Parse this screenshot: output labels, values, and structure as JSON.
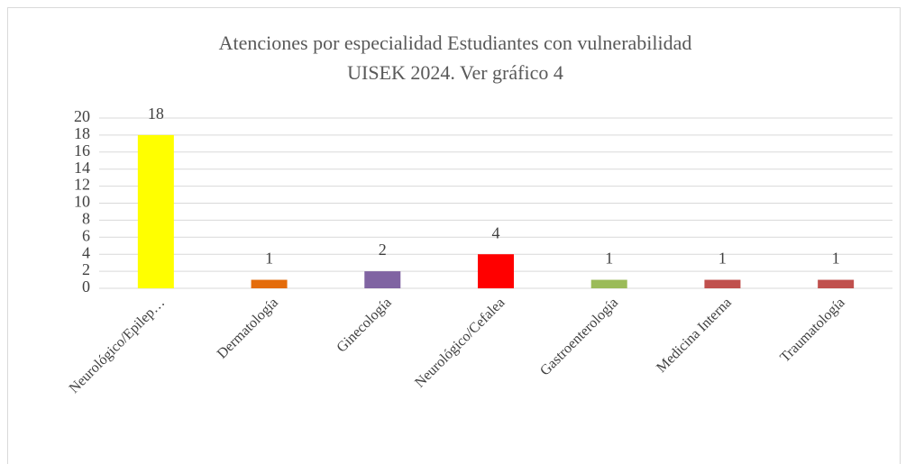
{
  "chart_data": {
    "type": "bar",
    "title": [
      "Atenciones por especialidad Estudiantes con vulnerabilidad",
      "UISEK 2024. Ver gráfico 4"
    ],
    "categories": [
      "Neurológico/Epilep…",
      "Dermatología",
      "Ginecología",
      "Neurológico/Cefalea",
      "Gastroenterología",
      "Medicina Interna",
      "Traumatología"
    ],
    "values": [
      18,
      1,
      2,
      4,
      1,
      1,
      1
    ],
    "colors": [
      "#ffff00",
      "#e46c0a",
      "#8064a2",
      "#ff0000",
      "#9bbb59",
      "#c0504d",
      "#c0504d"
    ],
    "ylim": [
      0,
      20
    ],
    "yticks": [
      0,
      2,
      4,
      6,
      8,
      10,
      12,
      14,
      16,
      18,
      20
    ],
    "grid": true
  }
}
